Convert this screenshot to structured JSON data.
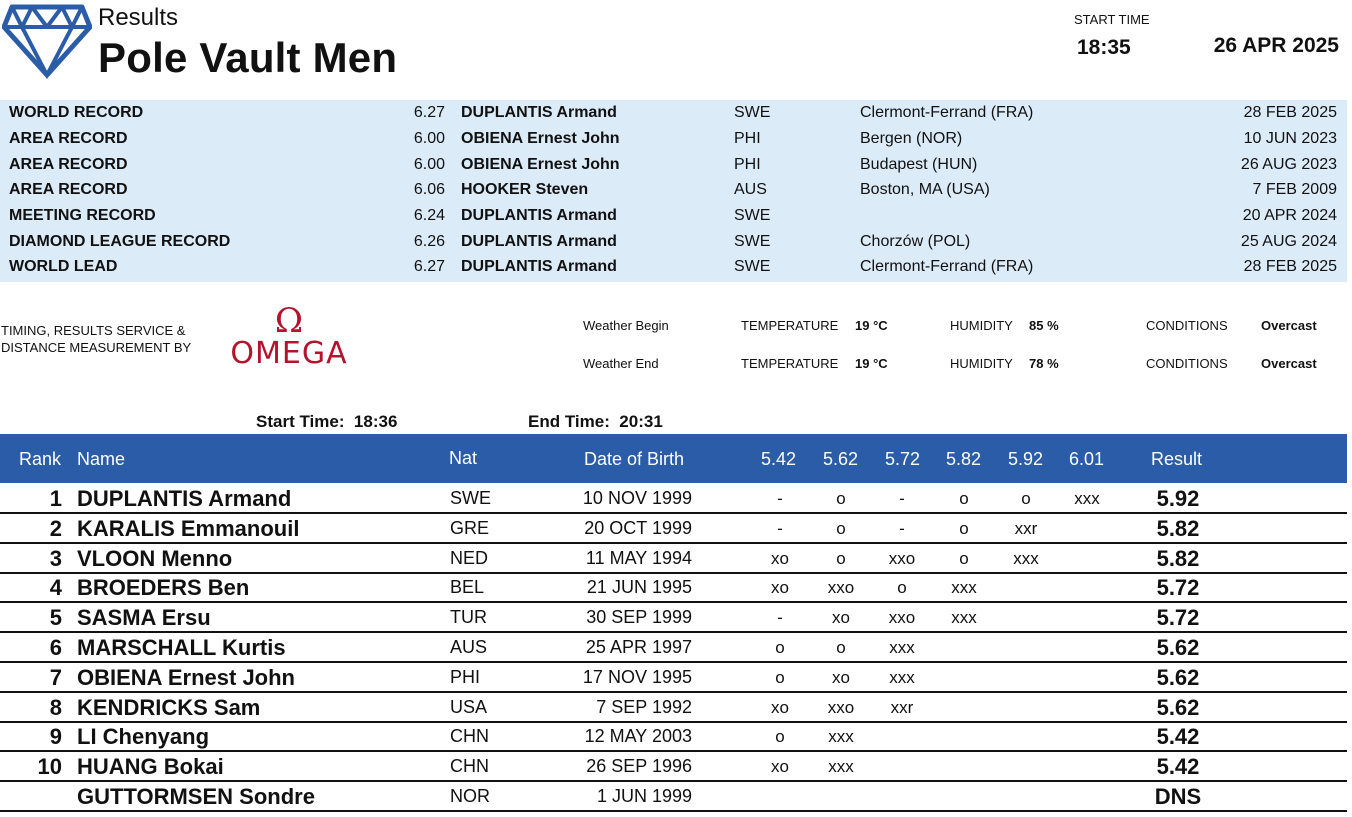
{
  "header": {
    "doc_label": "Results",
    "event_title": "Pole Vault Men",
    "start_time_label": "START TIME",
    "start_time": "18:35",
    "date": "26 APR 2025",
    "logo_icon": "diamond-league-logo-icon",
    "logo_color": "#2a5ca8"
  },
  "records": [
    {
      "type": "WORLD RECORD",
      "mark": "6.27",
      "name": "DUPLANTIS Armand",
      "nat": "SWE",
      "venue": "Clermont-Ferrand (FRA)",
      "date": "28 FEB 2025"
    },
    {
      "type": "AREA RECORD",
      "mark": "6.00",
      "name": "OBIENA Ernest John",
      "nat": "PHI",
      "venue": "Bergen (NOR)",
      "date": "10 JUN 2023"
    },
    {
      "type": "AREA RECORD",
      "mark": "6.00",
      "name": "OBIENA Ernest John",
      "nat": "PHI",
      "venue": "Budapest (HUN)",
      "date": "26 AUG 2023"
    },
    {
      "type": "AREA RECORD",
      "mark": "6.06",
      "name": "HOOKER Steven",
      "nat": "AUS",
      "venue": "Boston, MA (USA)",
      "date": "7 FEB 2009"
    },
    {
      "type": "MEETING RECORD",
      "mark": "6.24",
      "name": "DUPLANTIS Armand",
      "nat": "SWE",
      "venue": "",
      "date": "20 APR 2024"
    },
    {
      "type": "DIAMOND LEAGUE RECORD",
      "mark": "6.26",
      "name": "DUPLANTIS Armand",
      "nat": "SWE",
      "venue": "Chorzów (POL)",
      "date": "25 AUG 2024"
    },
    {
      "type": "WORLD LEAD",
      "mark": "6.27",
      "name": "DUPLANTIS Armand",
      "nat": "SWE",
      "venue": "Clermont-Ferrand (FRA)",
      "date": "28 FEB 2025"
    }
  ],
  "timing": {
    "label_line1": "TIMING, RESULTS SERVICE &",
    "label_line2": "DISTANCE MEASUREMENT BY",
    "brand": "OMEGA",
    "brand_symbol": "Ω",
    "brand_color": "#b5122e"
  },
  "weather": [
    {
      "label": "Weather Begin",
      "temp_label": "TEMPERATURE",
      "temp": "19 °C",
      "hum_label": "HUMIDITY",
      "hum": "85 %",
      "cond_label": "CONDITIONS",
      "cond": "Overcast"
    },
    {
      "label": "Weather End",
      "temp_label": "TEMPERATURE",
      "temp": "19 °C",
      "hum_label": "HUMIDITY",
      "hum": "78 %",
      "cond_label": "CONDITIONS",
      "cond": "Overcast"
    }
  ],
  "times": {
    "start": "Start Time:  18:36",
    "end": "End Time:  20:31"
  },
  "table": {
    "columns": {
      "rank": "Rank",
      "name": "Name",
      "nat": "Nat",
      "dob": "Date of Birth",
      "heights": [
        "5.42",
        "5.62",
        "5.72",
        "5.82",
        "5.92",
        "6.01"
      ],
      "result": "Result"
    },
    "rows": [
      {
        "rank": "1",
        "name": "DUPLANTIS Armand",
        "nat": "SWE",
        "dob": "10 NOV 1999",
        "attempts": [
          "-",
          "o",
          "-",
          "o",
          "o",
          "xxx"
        ],
        "result": "5.92"
      },
      {
        "rank": "2",
        "name": "KARALIS Emmanouil",
        "nat": "GRE",
        "dob": "20 OCT 1999",
        "attempts": [
          "-",
          "o",
          "-",
          "o",
          "xxr",
          ""
        ],
        "result": "5.82"
      },
      {
        "rank": "3",
        "name": "VLOON Menno",
        "nat": "NED",
        "dob": "11 MAY 1994",
        "attempts": [
          "xo",
          "o",
          "xxo",
          "o",
          "xxx",
          ""
        ],
        "result": "5.82"
      },
      {
        "rank": "4",
        "name": "BROEDERS Ben",
        "nat": "BEL",
        "dob": "21 JUN 1995",
        "attempts": [
          "xo",
          "xxo",
          "o",
          "xxx",
          "",
          ""
        ],
        "result": "5.72"
      },
      {
        "rank": "5",
        "name": "SASMA Ersu",
        "nat": "TUR",
        "dob": "30 SEP 1999",
        "attempts": [
          "-",
          "xo",
          "xxo",
          "xxx",
          "",
          ""
        ],
        "result": "5.72"
      },
      {
        "rank": "6",
        "name": "MARSCHALL Kurtis",
        "nat": "AUS",
        "dob": "25 APR 1997",
        "attempts": [
          "o",
          "o",
          "xxx",
          "",
          "",
          ""
        ],
        "result": "5.62"
      },
      {
        "rank": "7",
        "name": "OBIENA Ernest John",
        "nat": "PHI",
        "dob": "17 NOV 1995",
        "attempts": [
          "o",
          "xo",
          "xxx",
          "",
          "",
          ""
        ],
        "result": "5.62"
      },
      {
        "rank": "8",
        "name": "KENDRICKS Sam",
        "nat": "USA",
        "dob": "7 SEP 1992",
        "attempts": [
          "xo",
          "xxo",
          "xxr",
          "",
          "",
          ""
        ],
        "result": "5.62"
      },
      {
        "rank": "9",
        "name": "LI Chenyang",
        "nat": "CHN",
        "dob": "12 MAY 2003",
        "attempts": [
          "o",
          "xxx",
          "",
          "",
          "",
          ""
        ],
        "result": "5.42"
      },
      {
        "rank": "10",
        "name": "HUANG Bokai",
        "nat": "CHN",
        "dob": "26 SEP 1996",
        "attempts": [
          "xo",
          "xxx",
          "",
          "",
          "",
          ""
        ],
        "result": "5.42"
      },
      {
        "rank": "",
        "name": "GUTTORMSEN Sondre",
        "nat": "NOR",
        "dob": "1 JUN 1999",
        "attempts": [
          "",
          "",
          "",
          "",
          "",
          ""
        ],
        "result": "DNS"
      }
    ]
  }
}
